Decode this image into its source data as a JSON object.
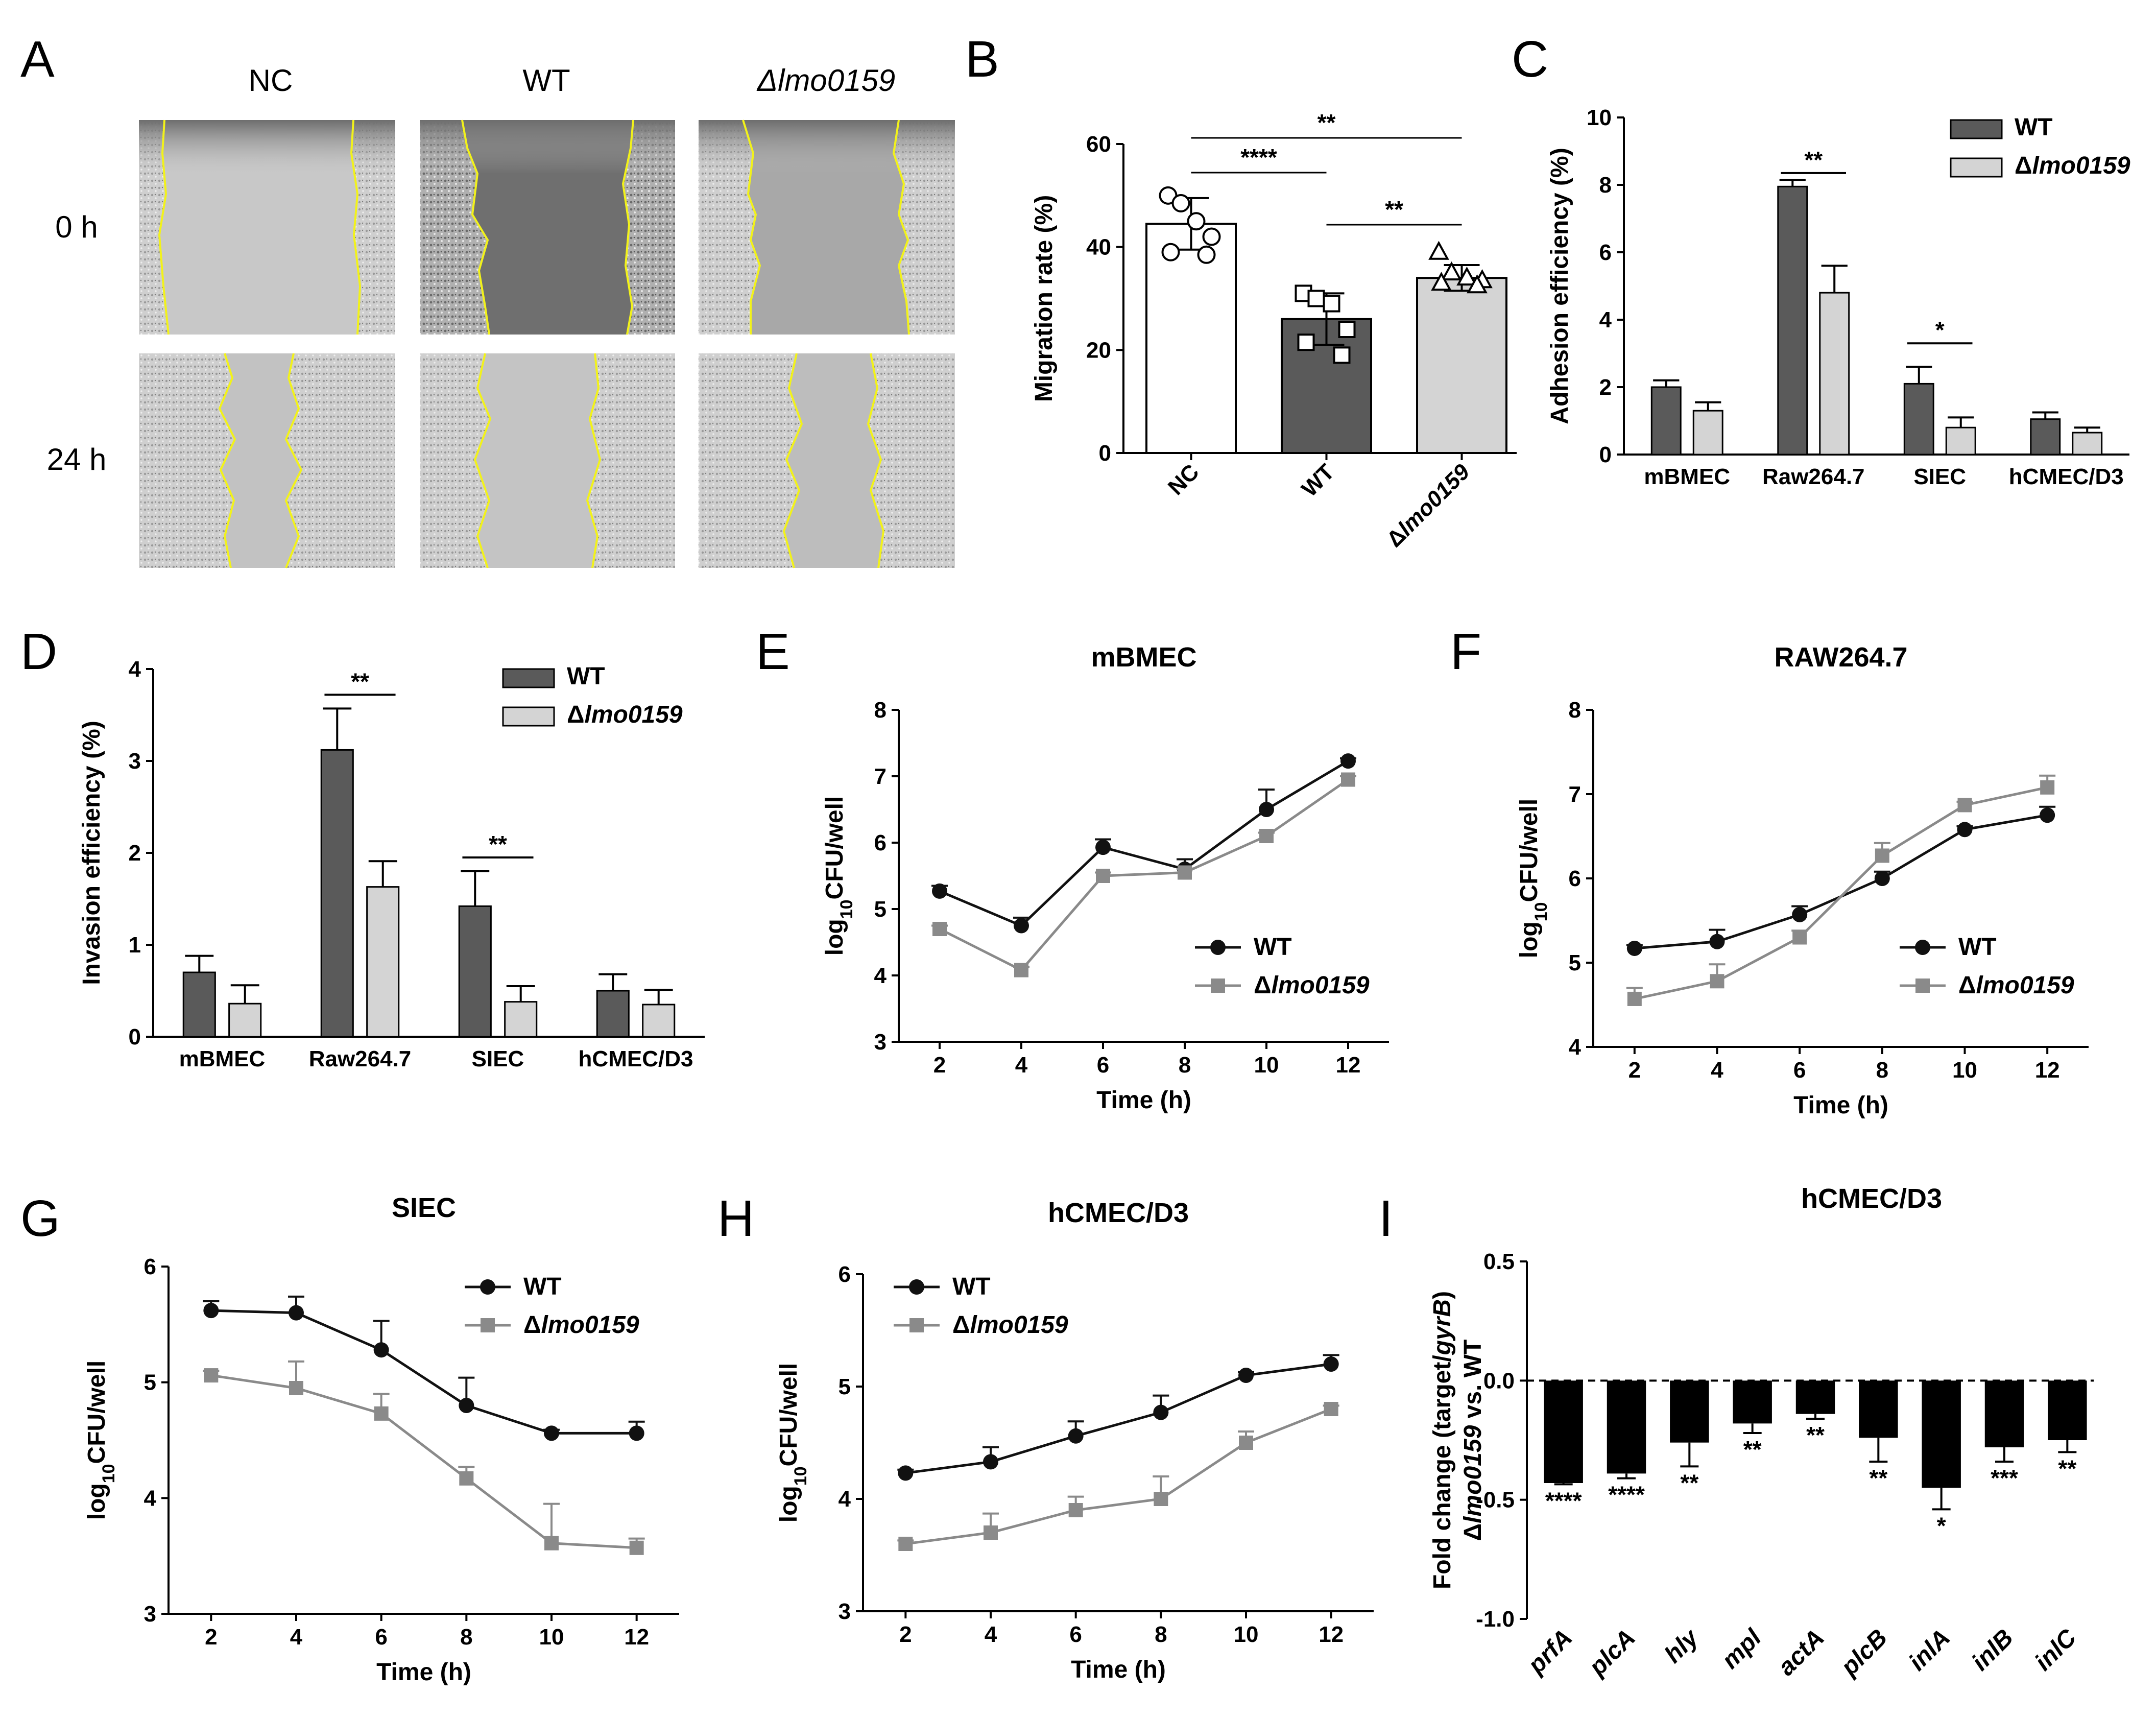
{
  "colors": {
    "wt_bar": "#5a5a5a",
    "mut_bar": "#d4d4d4",
    "wt_line": "#111111",
    "mut_line": "#8a8a8a",
    "scratch_edge": "#f2f21a"
  },
  "panels": {
    "A": {
      "letter": "A",
      "columns": [
        "NC",
        "WT",
        "Δlmo0159"
      ],
      "rows": [
        "0 h",
        "24 h"
      ]
    },
    "B": {
      "letter": "B"
    },
    "C": {
      "letter": "C"
    },
    "D": {
      "letter": "D"
    },
    "E": {
      "letter": "E"
    },
    "F": {
      "letter": "F"
    },
    "G": {
      "letter": "G"
    },
    "H": {
      "letter": "H"
    },
    "I": {
      "letter": "I"
    }
  },
  "chart_data": [
    {
      "panel": "B",
      "type": "bar",
      "ylabel": "Migration rate (%)",
      "ylim": [
        0,
        60
      ],
      "yticks": [
        0,
        20,
        40,
        60
      ],
      "categories": [
        "NC",
        "WT",
        "Δlmo0159"
      ],
      "values": [
        44.5,
        26,
        34
      ],
      "errors": [
        5,
        5,
        2.5
      ],
      "points": [
        [
          50,
          48.5,
          45,
          42,
          39,
          38.5
        ],
        [
          31,
          30,
          29,
          24,
          21.5,
          19
        ],
        [
          39,
          35,
          34,
          33.5,
          33,
          32.5
        ]
      ],
      "markers": [
        "circle",
        "square",
        "triangle"
      ],
      "significance": [
        {
          "from": 0,
          "to": 1,
          "label": "****"
        },
        {
          "from": 0,
          "to": 2,
          "label": "**"
        },
        {
          "from": 1,
          "to": 2,
          "label": "**"
        }
      ]
    },
    {
      "panel": "C",
      "type": "bar",
      "ylabel": "Adhesion efficiency (%)",
      "ylim": [
        0,
        10
      ],
      "yticks": [
        0,
        2,
        4,
        6,
        8,
        10
      ],
      "categories": [
        "mBMEC",
        "Raw264.7",
        "SIEC",
        "hCMEC/D3"
      ],
      "series": [
        {
          "name": "WT",
          "values": [
            2.0,
            7.95,
            2.1,
            1.05
          ],
          "errors": [
            0.2,
            0.2,
            0.5,
            0.2
          ]
        },
        {
          "name": "Δlmo0159",
          "values": [
            1.3,
            4.8,
            0.8,
            0.65
          ],
          "errors": [
            0.25,
            0.8,
            0.3,
            0.15
          ]
        }
      ],
      "legend": "top-right",
      "significance": [
        {
          "category": 1,
          "label": "**",
          "y": 8.35
        },
        {
          "category": 2,
          "label": "*",
          "y": 3.3
        }
      ]
    },
    {
      "panel": "D",
      "type": "bar",
      "ylabel": "Invasion efficiency (%)",
      "ylim": [
        0,
        4
      ],
      "yticks": [
        0,
        1,
        2,
        3,
        4
      ],
      "categories": [
        "mBMEC",
        "Raw264.7",
        "SIEC",
        "hCMEC/D3"
      ],
      "series": [
        {
          "name": "WT",
          "values": [
            0.7,
            3.12,
            1.42,
            0.5
          ],
          "errors": [
            0.18,
            0.45,
            0.38,
            0.18
          ]
        },
        {
          "name": "Δlmo0159",
          "values": [
            0.36,
            1.63,
            0.38,
            0.35
          ],
          "errors": [
            0.2,
            0.28,
            0.17,
            0.16
          ]
        }
      ],
      "legend": "top-right",
      "significance": [
        {
          "category": 1,
          "label": "**",
          "y": 3.72
        },
        {
          "category": 2,
          "label": "**",
          "y": 1.95
        }
      ]
    },
    {
      "panel": "E",
      "type": "line",
      "title": "mBMEC",
      "xlabel": "Time (h)",
      "ylabel": "log10CFU/well",
      "x": [
        2,
        4,
        6,
        8,
        10,
        12
      ],
      "xlim": [
        1,
        13
      ],
      "ylim": [
        3,
        8
      ],
      "yticks": [
        3,
        4,
        5,
        6,
        7,
        8
      ],
      "series": [
        {
          "name": "WT",
          "values": [
            5.27,
            4.75,
            5.93,
            5.6,
            6.5,
            7.23
          ],
          "errors": [
            0.08,
            0.12,
            0.12,
            0.15,
            0.3,
            0.04
          ]
        },
        {
          "name": "Δlmo0159",
          "values": [
            4.7,
            4.08,
            5.5,
            5.55,
            6.1,
            6.95
          ],
          "errors": [
            0.05,
            0.05,
            0.05,
            0.05,
            0.05,
            0.05
          ]
        }
      ],
      "legend": "bottom-right"
    },
    {
      "panel": "F",
      "type": "line",
      "title": "RAW264.7",
      "xlabel": "Time (h)",
      "ylabel": "log10CFU/well",
      "x": [
        2,
        4,
        6,
        8,
        10,
        12
      ],
      "xlim": [
        1,
        13
      ],
      "ylim": [
        4,
        8
      ],
      "yticks": [
        4,
        5,
        6,
        7,
        8
      ],
      "series": [
        {
          "name": "WT",
          "values": [
            5.17,
            5.25,
            5.57,
            6.0,
            6.58,
            6.75
          ],
          "errors": [
            0.04,
            0.14,
            0.1,
            0.08,
            0.04,
            0.1
          ]
        },
        {
          "name": "Δlmo0159",
          "values": [
            4.57,
            4.78,
            5.3,
            6.27,
            6.87,
            7.08
          ],
          "errors": [
            0.13,
            0.2,
            0.08,
            0.15,
            0.04,
            0.14
          ]
        }
      ],
      "legend": "bottom-right"
    },
    {
      "panel": "G",
      "type": "line",
      "title": "SIEC",
      "xlabel": "Time (h)",
      "ylabel": "log10CFU/well",
      "x": [
        2,
        4,
        6,
        8,
        10,
        12
      ],
      "xlim": [
        1,
        13
      ],
      "ylim": [
        3,
        6
      ],
      "yticks": [
        3,
        4,
        5,
        6
      ],
      "series": [
        {
          "name": "WT",
          "values": [
            5.62,
            5.6,
            5.28,
            4.8,
            4.56,
            4.56
          ],
          "errors": [
            0.08,
            0.14,
            0.25,
            0.24,
            0.03,
            0.1
          ]
        },
        {
          "name": "Δlmo0159",
          "values": [
            5.06,
            4.95,
            4.73,
            4.17,
            3.61,
            3.57
          ],
          "errors": [
            0.04,
            0.23,
            0.17,
            0.1,
            0.34,
            0.08
          ]
        }
      ],
      "legend": "top-right"
    },
    {
      "panel": "H",
      "type": "line",
      "title": "hCMEC/D3",
      "xlabel": "Time (h)",
      "ylabel": "log10CFU/well",
      "x": [
        2,
        4,
        6,
        8,
        10,
        12
      ],
      "xlim": [
        1,
        13
      ],
      "ylim": [
        3,
        6
      ],
      "yticks": [
        3,
        4,
        5,
        6
      ],
      "series": [
        {
          "name": "WT",
          "values": [
            4.23,
            4.33,
            4.56,
            4.77,
            5.1,
            5.2
          ],
          "errors": [
            0.03,
            0.13,
            0.13,
            0.15,
            0.03,
            0.08
          ]
        },
        {
          "name": "Δlmo0159",
          "values": [
            3.6,
            3.7,
            3.9,
            4.0,
            4.5,
            4.8
          ],
          "errors": [
            0.03,
            0.17,
            0.12,
            0.2,
            0.1,
            0.03
          ]
        }
      ],
      "legend": "top-left"
    },
    {
      "panel": "I",
      "type": "bar",
      "title": "hCMEC/D3",
      "ylabel": "Fold change (target/gyrB) Δlmo0159 vs. WT",
      "ylabel_line1": "Fold change (target/gyrB)",
      "ylabel_line2": "Δlmo0159 vs. WT",
      "ylim": [
        -1.0,
        0.5
      ],
      "yticks": [
        -1.0,
        -0.5,
        0.0,
        0.5
      ],
      "ytick_labels": [
        "-1.0",
        "-0.5",
        "0.0",
        "0.5"
      ],
      "categories": [
        "prfA",
        "plcA",
        "hly",
        "mpl",
        "actA",
        "plcB",
        "inlA",
        "inlB",
        "inlC"
      ],
      "values": [
        -0.43,
        -0.39,
        -0.26,
        -0.18,
        -0.14,
        -0.24,
        -0.45,
        -0.28,
        -0.25
      ],
      "errors": [
        0.005,
        0.02,
        0.1,
        0.04,
        0.02,
        0.1,
        0.09,
        0.06,
        0.05
      ],
      "significance": [
        "****",
        "****",
        "**",
        "**",
        "**",
        "**",
        "*",
        "***",
        "**"
      ]
    }
  ]
}
